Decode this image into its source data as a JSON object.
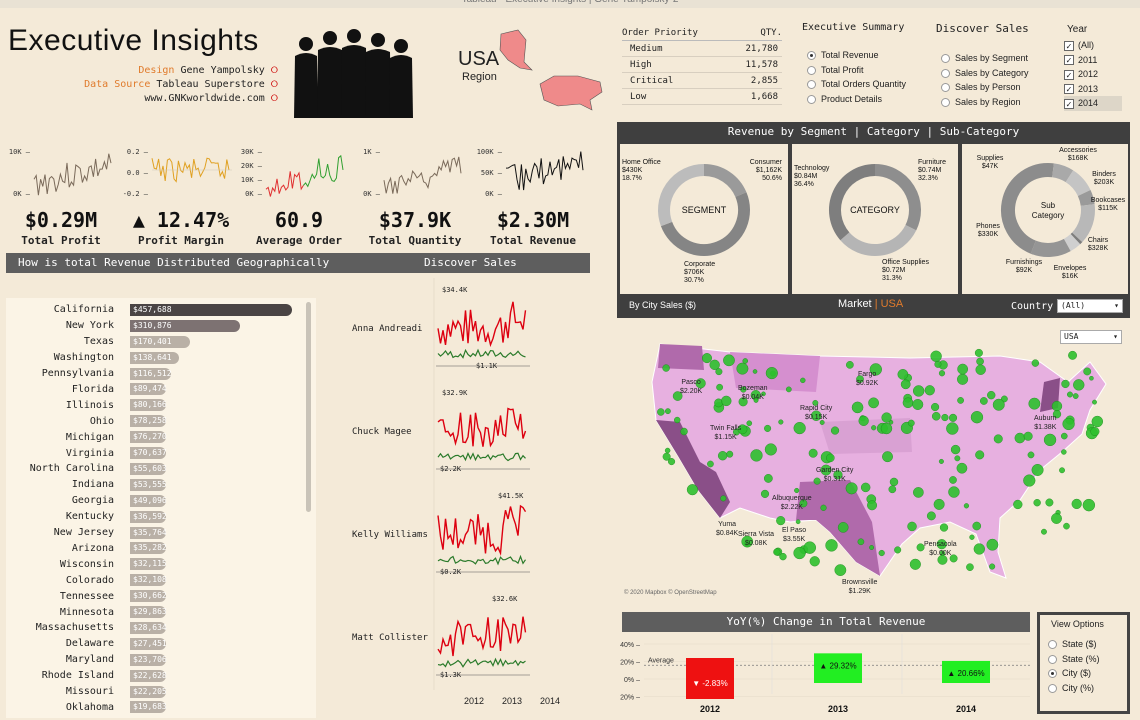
{
  "window_title": "Tableau - Executive Insights | Gene Yampolsky-2",
  "title": "Executive Insights",
  "credits": {
    "design_label": "Design",
    "design_value": "Gene Yampolsky",
    "source_label": "Data Source",
    "source_value": "Tableau Superstore",
    "website": "www.GNKworldwide.com"
  },
  "region": {
    "name": "USA",
    "label": "Region"
  },
  "kpis": [
    {
      "value": "$0.29M",
      "label": "Total Profit"
    },
    {
      "value": "▲ 12.47%",
      "label": "Profit Margin"
    },
    {
      "value": "60.9",
      "label": "Average Order"
    },
    {
      "value": "$37.9K",
      "label": "Total Quantity"
    },
    {
      "value": "$2.30M",
      "label": "Total Revenue"
    }
  ],
  "sparkline_ticks": [
    [
      "10K",
      "0K"
    ],
    [
      "0.2",
      "0.0",
      "-0.2"
    ],
    [
      "30K",
      "20K",
      "10K",
      "0K"
    ],
    [
      "1K",
      "0K"
    ],
    [
      "100K",
      "50K",
      "0K"
    ]
  ],
  "order_priority": {
    "header": "Order Priority",
    "qty_header": "QTY.",
    "rows": [
      {
        "name": "Medium",
        "qty": "21,780"
      },
      {
        "name": "High",
        "qty": "11,578"
      },
      {
        "name": "Critical",
        "qty": "2,855"
      },
      {
        "name": "Low",
        "qty": "1,668"
      }
    ]
  },
  "exec_summary": {
    "title": "Executive Summary",
    "options": [
      "Total Revenue",
      "Total Profit",
      "Total Orders Quantity",
      "Product Details"
    ],
    "selected": 0
  },
  "discover_sales_opts": {
    "title": "Discover Sales",
    "options": [
      "Sales by Segment",
      "Sales by Category",
      "Sales by Person",
      "Sales by Region"
    ]
  },
  "year_filter": {
    "title": "Year",
    "options": [
      "(All)",
      "2011",
      "2012",
      "2013",
      "2014"
    ]
  },
  "geo_header": "How is total Revenue Distributed Geographically",
  "discover_sales_header": "Discover Sales",
  "states": [
    {
      "name": "California",
      "value": "$457,688",
      "n": 457688
    },
    {
      "name": "New York",
      "value": "$310,876",
      "n": 310876
    },
    {
      "name": "Texas",
      "value": "$170,401",
      "n": 170401
    },
    {
      "name": "Washington",
      "value": "$138,641",
      "n": 138641
    },
    {
      "name": "Pennsylvania",
      "value": "$116,512",
      "n": 116512
    },
    {
      "name": "Florida",
      "value": "$89,474",
      "n": 89474
    },
    {
      "name": "Illinois",
      "value": "$80,166",
      "n": 80166
    },
    {
      "name": "Ohio",
      "value": "$78,258",
      "n": 78258
    },
    {
      "name": "Michigan",
      "value": "$76,270",
      "n": 76270
    },
    {
      "name": "Virginia",
      "value": "$70,637",
      "n": 70637
    },
    {
      "name": "North Carolina",
      "value": "$55,603",
      "n": 55603
    },
    {
      "name": "Indiana",
      "value": "$53,555",
      "n": 53555
    },
    {
      "name": "Georgia",
      "value": "$49,096",
      "n": 49096
    },
    {
      "name": "Kentucky",
      "value": "$36,592",
      "n": 36592
    },
    {
      "name": "New Jersey",
      "value": "$35,764",
      "n": 35764
    },
    {
      "name": "Arizona",
      "value": "$35,282",
      "n": 35282
    },
    {
      "name": "Wisconsin",
      "value": "$32,115",
      "n": 32115
    },
    {
      "name": "Colorado",
      "value": "$32,108",
      "n": 32108
    },
    {
      "name": "Tennessee",
      "value": "$30,662",
      "n": 30662
    },
    {
      "name": "Minnesota",
      "value": "$29,863",
      "n": 29863
    },
    {
      "name": "Massachusetts",
      "value": "$28,634",
      "n": 28634
    },
    {
      "name": "Delaware",
      "value": "$27,451",
      "n": 27451
    },
    {
      "name": "Maryland",
      "value": "$23,706",
      "n": 23706
    },
    {
      "name": "Rhode Island",
      "value": "$22,628",
      "n": 22628
    },
    {
      "name": "Missouri",
      "value": "$22,205",
      "n": 22205
    },
    {
      "name": "Oklahoma",
      "value": "$19,683",
      "n": 19683
    }
  ],
  "persons": [
    {
      "name": "Anna Andreadi",
      "max": "$34.4K",
      "min": "$1.1K"
    },
    {
      "name": "Chuck Magee",
      "max": "$32.9K",
      "min": "$2.2K"
    },
    {
      "name": "Kelly Williams",
      "max": "$41.5K",
      "min": "$0.2K"
    },
    {
      "name": "Matt Collister",
      "max": "$32.6K",
      "min": "$1.3K"
    }
  ],
  "person_years": [
    "2012",
    "2013",
    "2014"
  ],
  "segment_header": "Revenue by Segment | Category | Sub-Category",
  "donuts": {
    "segment": {
      "center": "SEGMENT",
      "labels": [
        [
          "Home Office",
          "$430K",
          "18.7%"
        ],
        [
          "Consumer",
          "$1,162K",
          "50.6%"
        ],
        [
          "Corporate",
          "$706K",
          "30.7%"
        ]
      ]
    },
    "category": {
      "center": "CATEGORY",
      "labels": [
        [
          "Technology",
          "$0.84M",
          "36.4%"
        ],
        [
          "Furniture",
          "$0.74M",
          "32.3%"
        ],
        [
          "Office Supplies",
          "$0.72M",
          "31.3%"
        ]
      ]
    },
    "subcat": {
      "center_1": "Sub",
      "center_2": "Category",
      "labels": [
        [
          "Supplies",
          "$47K"
        ],
        [
          "Accessories",
          "$168K"
        ],
        [
          "Binders",
          "$203K"
        ],
        [
          "Bookcases",
          "$115K"
        ],
        [
          "Chairs",
          "$328K"
        ],
        [
          "Envelopes",
          "$16K"
        ],
        [
          "Furnishings",
          "$92K"
        ],
        [
          "Phones",
          "$330K"
        ]
      ]
    }
  },
  "map_bar": {
    "left": "By City Sales ($)",
    "market": "Market",
    "market_sep": "|",
    "market_value": "USA",
    "country_label": "Country",
    "country_value": "(All)",
    "market_select": "USA"
  },
  "map_cities": [
    [
      "Pasco",
      "$2.20K"
    ],
    [
      "Bozeman",
      "$0.04K"
    ],
    [
      "Fargo",
      "$0.92K"
    ],
    [
      "Rapid City",
      "$0.15K"
    ],
    [
      "Twin Falls",
      "$1.15K"
    ],
    [
      "Auburn",
      "$1.38K"
    ],
    [
      "Garden City",
      "$0.31K"
    ],
    [
      "Albuquerque",
      "$2.22K"
    ],
    [
      "Yuma",
      "$0.84K"
    ],
    [
      "Sierra Vista",
      "$0.08K"
    ],
    [
      "El Paso",
      "$3.55K"
    ],
    [
      "Pensacola",
      "$0.00K"
    ],
    [
      "Brownsville",
      "$1.29K"
    ]
  ],
  "map_credit": "© 2020 Mapbox © OpenStreetMap",
  "yoy": {
    "title": "YoY(%) Change in Total Revenue",
    "average_label": "Average",
    "ticks": [
      "40%",
      "20%",
      "0%",
      "-20%"
    ],
    "bars": [
      {
        "year": "2012",
        "label": "▼ -2.83%",
        "value": -2.83,
        "color": "#ee1111"
      },
      {
        "year": "2013",
        "label": "▲ 29.32%",
        "value": 29.32,
        "color": "#22ee22"
      },
      {
        "year": "2014",
        "label": "▲ 20.66%",
        "value": 20.66,
        "color": "#22ee22"
      }
    ]
  },
  "view_options": {
    "title": "View Options",
    "options": [
      "State ($)",
      "State (%)",
      "City ($)",
      "City (%)"
    ],
    "selected": 2
  }
}
